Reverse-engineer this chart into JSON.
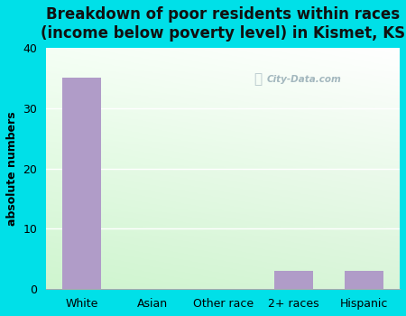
{
  "categories": [
    "White",
    "Asian",
    "Other race",
    "2+ races",
    "Hispanic"
  ],
  "values": [
    35,
    0,
    0,
    3,
    3
  ],
  "bar_color": "#b09cc8",
  "title": "Breakdown of poor residents within races\n(income below poverty level) in Kismet, KS",
  "ylabel": "absolute numbers",
  "ylim": [
    0,
    40
  ],
  "yticks": [
    0,
    10,
    20,
    30,
    40
  ],
  "outer_bg_color": "#00e0e8",
  "title_fontsize": 12,
  "axis_label_fontsize": 9,
  "tick_fontsize": 9,
  "watermark_text": "City-Data.com"
}
